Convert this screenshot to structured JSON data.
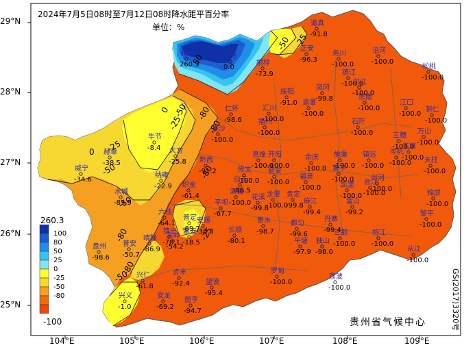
{
  "title": "2024年7月5日08时至7月12日08时降水距平百分率",
  "unit": "单位：%",
  "agency": "贵州省气候中心",
  "code": "GS(2017)3320号",
  "lat_labels": [
    "29°N",
    "28°N",
    "27°N",
    "26°N",
    "25°N"
  ],
  "lon_labels": [
    "104°E",
    "105°E",
    "106°E",
    "107°E",
    "108°E",
    "109°E"
  ],
  "legend": {
    "max": "260.3",
    "min": "-100",
    "levels": [
      {
        "label": "100",
        "color": "#1030a8"
      },
      {
        "label": "80",
        "color": "#1c5ed0"
      },
      {
        "label": "50",
        "color": "#1f8ee8"
      },
      {
        "label": "25",
        "color": "#34c4f0"
      },
      {
        "label": "0",
        "color": "#7fe6f5"
      },
      {
        "label": "-25",
        "color": "#ffff30"
      },
      {
        "label": "-50",
        "color": "#f7d830"
      },
      {
        "label": "-80",
        "color": "#f5a020"
      },
      {
        "label": "",
        "color": "#f06a10"
      },
      {
        "label": "",
        "color": "#e84a0a"
      }
    ]
  },
  "contour_labels": [
    "0",
    "-25",
    "-50",
    "-80",
    "-80",
    "-50",
    "-25",
    "0",
    "80",
    "-25",
    "-50",
    "-80",
    "-50",
    "-25",
    "-80",
    "-50",
    "-80"
  ],
  "stations": [
    {
      "name": "赤水",
      "value": "260.3"
    },
    {
      "name": "道真",
      "value": "-91.8"
    },
    {
      "name": "正安",
      "value": "-96.3"
    },
    {
      "name": "务川",
      "value": "-100.0"
    },
    {
      "name": "沿河",
      "value": "-100.0"
    },
    {
      "name": "习水",
      "value": "0.0"
    },
    {
      "name": "桐梓",
      "value": "-73.9"
    },
    {
      "name": "德江",
      "value": "-100.0"
    },
    {
      "name": "印江",
      "value": "-100.0"
    },
    {
      "name": "松桃",
      "value": "-100.0"
    },
    {
      "name": "绥阳",
      "value": "-91.0"
    },
    {
      "name": "凤冈",
      "value": "-99.8"
    },
    {
      "name": "湄潭",
      "value": "-100.0"
    },
    {
      "name": "思南",
      "value": "-100.0"
    },
    {
      "name": "江口",
      "value": "-100.0"
    },
    {
      "name": "铜仁",
      "value": "-100.0"
    },
    {
      "name": "仁怀",
      "value": "-98.6"
    },
    {
      "name": "汇川",
      "value": "-100.0"
    },
    {
      "name": "播州",
      "value": "-100.0"
    },
    {
      "name": "石阡",
      "value": "-100.0"
    },
    {
      "name": "金沙",
      "value": "-100.0"
    },
    {
      "name": "毕节",
      "value": "-8.4"
    },
    {
      "name": "大方",
      "value": "-25.8"
    },
    {
      "name": "黔西",
      "value": "-91.2"
    },
    {
      "name": "息烽",
      "value": "-100.0"
    },
    {
      "name": "开阳",
      "value": "-100.0"
    },
    {
      "name": "余庆",
      "value": "-100.0"
    },
    {
      "name": "施秉",
      "value": "-100.0"
    },
    {
      "name": "镇远",
      "value": "-100.0"
    },
    {
      "name": "岑巩",
      "value": "-100.0"
    },
    {
      "name": "三穗",
      "value": "-100.0"
    },
    {
      "name": "玉屏",
      "value": "-100.0"
    },
    {
      "name": "万山",
      "value": "-100.0"
    },
    {
      "name": "天柱",
      "value": "-100.0"
    },
    {
      "name": "赫章",
      "value": "-38.5"
    },
    {
      "name": "威宁",
      "value": "-34.6"
    },
    {
      "name": "纳雍",
      "value": "-22.9"
    },
    {
      "name": "织金",
      "value": "-61.4"
    },
    {
      "name": "修文",
      "value": "-100.0"
    },
    {
      "name": "瓮安",
      "value": "-100.0"
    },
    {
      "name": "黄平",
      "value": "-100.0"
    },
    {
      "name": "剑河",
      "value": "-100.0"
    },
    {
      "name": "锦屏",
      "value": "-100.0"
    },
    {
      "name": "台江",
      "value": "-100.0"
    },
    {
      "name": "清镇",
      "value": "-100.0"
    },
    {
      "name": "白云",
      "value": "-86.5"
    },
    {
      "name": "福泉",
      "value": "-100.0"
    },
    {
      "name": "凯里",
      "value": "-100.0"
    },
    {
      "name": "雷山",
      "value": "-99.2"
    },
    {
      "name": "水城",
      "value": "-83.5"
    },
    {
      "name": "平坝",
      "value": "-67.7"
    },
    {
      "name": "花溪",
      "value": "-99.8"
    },
    {
      "name": "龙里",
      "value": "-100.0"
    },
    {
      "name": "贵定",
      "value": "-99.8"
    },
    {
      "name": "麻江",
      "value": "-99.4"
    },
    {
      "name": "丹寨",
      "value": "-99.4"
    },
    {
      "name": "黎平",
      "value": "-100.0"
    },
    {
      "name": "六枝",
      "value": "-64.1"
    },
    {
      "name": "普定",
      "value": "-89.7"
    },
    {
      "name": "安顺",
      "value": "-38.3"
    },
    {
      "name": "镇宁",
      "value": "-70.1"
    },
    {
      "name": "长顺",
      "value": "-80.1"
    },
    {
      "name": "惠水",
      "value": "-98.7"
    },
    {
      "name": "都匀",
      "value": "-99.6"
    },
    {
      "name": "盘州",
      "value": "-98.6"
    },
    {
      "name": "普安",
      "value": "-50.7"
    },
    {
      "name": "晴隆",
      "value": "-86.9"
    },
    {
      "name": "关岭",
      "value": "-54.2"
    },
    {
      "name": "紫云",
      "value": "-18.5"
    },
    {
      "name": "兴仁",
      "value": "-61.8"
    },
    {
      "name": "贞丰",
      "value": "-92.4"
    },
    {
      "name": "望谟",
      "value": "-95.4"
    },
    {
      "name": "罗甸",
      "value": "-100.0"
    },
    {
      "name": "平塘",
      "value": "-97.9"
    },
    {
      "name": "独山",
      "value": "-98.0"
    },
    {
      "name": "三都",
      "value": "-100.0"
    },
    {
      "name": "榕江",
      "value": "-100.0"
    },
    {
      "name": "从江",
      "value": "-100.0"
    },
    {
      "name": "荔波",
      "value": "-100.0"
    },
    {
      "name": "兴义",
      "value": "-1.0"
    },
    {
      "name": "安龙",
      "value": "-69.2"
    },
    {
      "name": "册亨",
      "value": "-94.7"
    }
  ]
}
